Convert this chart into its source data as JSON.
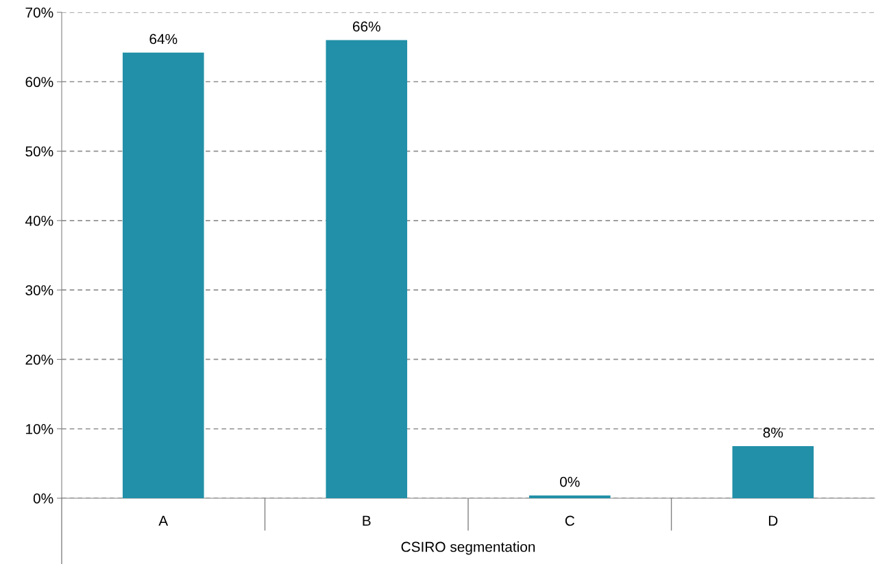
{
  "chart_data": {
    "type": "bar",
    "xlabel": "CSIRO segmentation",
    "categories": [
      "A",
      "B",
      "C",
      "D"
    ],
    "values": [
      64.2,
      66.0,
      0.4,
      7.5
    ],
    "value_labels": [
      "64%",
      "66%",
      "0%",
      "8%"
    ],
    "color": "#2290a8",
    "ylim": [
      0,
      70
    ],
    "yticks": [
      {
        "value": 0,
        "label": "0%"
      },
      {
        "value": 10,
        "label": "10%"
      },
      {
        "value": 20,
        "label": "20%"
      },
      {
        "value": 30,
        "label": "30%"
      },
      {
        "value": 40,
        "label": "40%"
      },
      {
        "value": 50,
        "label": "50%"
      },
      {
        "value": 60,
        "label": "60%"
      },
      {
        "value": 70,
        "label": "70%"
      }
    ],
    "grid": "y",
    "legend": false
  }
}
